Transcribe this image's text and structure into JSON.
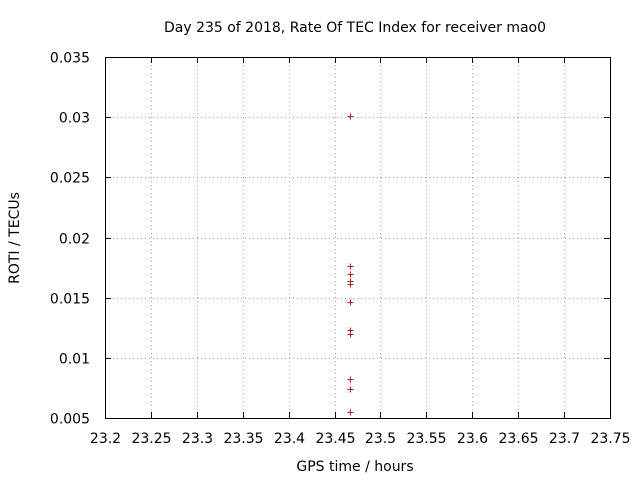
{
  "chart_data": {
    "type": "scatter",
    "title": "Day 235 of 2018, Rate Of TEC Index for receiver mao0",
    "xlabel": "GPS time / hours",
    "ylabel": "ROTI / TECUs",
    "xlim": [
      23.2,
      23.75
    ],
    "ylim": [
      0.005,
      0.035
    ],
    "x_ticks": [
      "23.2",
      "23.25",
      "23.3",
      "23.35",
      "23.4",
      "23.45",
      "23.5",
      "23.55",
      "23.6",
      "23.65",
      "23.7",
      "23.75"
    ],
    "y_ticks": [
      "0.005",
      "0.01",
      "0.015",
      "0.02",
      "0.025",
      "0.03",
      "0.035"
    ],
    "grid": true,
    "marker": "+",
    "series": [
      {
        "name": "mao0",
        "color": "#b22222",
        "points": [
          {
            "x": 23.4667,
            "y": 0.0301
          },
          {
            "x": 23.4667,
            "y": 0.0176
          },
          {
            "x": 23.4667,
            "y": 0.017
          },
          {
            "x": 23.4667,
            "y": 0.0164
          },
          {
            "x": 23.4667,
            "y": 0.0161
          },
          {
            "x": 23.4667,
            "y": 0.0146
          },
          {
            "x": 23.4667,
            "y": 0.0123
          },
          {
            "x": 23.4667,
            "y": 0.012
          },
          {
            "x": 23.4667,
            "y": 0.0082
          },
          {
            "x": 23.4667,
            "y": 0.0074
          },
          {
            "x": 23.4667,
            "y": 0.0055
          }
        ]
      }
    ]
  }
}
